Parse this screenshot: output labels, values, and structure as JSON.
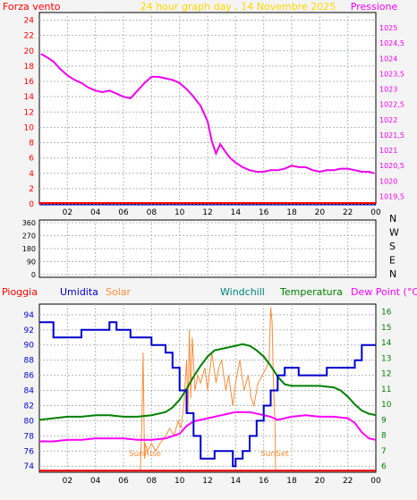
{
  "header": {
    "title": "24 hour graph day , 14 Novembre 2025",
    "left_label": "Forza vento",
    "right_label": "Pressione"
  },
  "colors": {
    "background": "#f4f4f4",
    "plot_bg": "#ffffff",
    "grid": "#b0b8b0",
    "title": "#ffd700",
    "wind_label": "#ff0000",
    "pressure": "#ee00ee",
    "rain": "#ff0000",
    "humidity": "#0000cc",
    "solar": "#ff8c3a",
    "windchill": "#008080",
    "temperature": "#008000",
    "dewpoint": "#ff00ff"
  },
  "chart_data": [
    {
      "type": "line",
      "title": "24 hour graph day , 14 Novembre 2025",
      "x_tick_labels": [
        "02",
        "04",
        "06",
        "08",
        "10",
        "12",
        "14",
        "16",
        "18",
        "20",
        "22",
        "00"
      ],
      "y_left": {
        "label": "Forza vento",
        "ticks": [
          "0",
          "2",
          "4",
          "6",
          "8",
          "10",
          "12",
          "14",
          "16",
          "18",
          "20",
          "22",
          "24"
        ],
        "range": [
          0,
          25
        ]
      },
      "y_right": {
        "label": "Pressione",
        "ticks": [
          "1019,5",
          "1020",
          "1020,5",
          "1021",
          "1021,5",
          "1022",
          "1022,5",
          "1023",
          "1023,5",
          "1024",
          "1024,5",
          "1025"
        ],
        "range": [
          1019.25,
          1025.5
        ]
      },
      "grid": true,
      "series": [
        {
          "name": "Pressione",
          "axis": "right",
          "color": "#ee00ee",
          "x_hours": [
            0.1,
            0.5,
            1.0,
            1.5,
            2.0,
            2.5,
            3.0,
            3.5,
            4.0,
            4.5,
            5.0,
            5.5,
            6.0,
            6.5,
            7.0,
            7.5,
            8.0,
            8.5,
            9.0,
            9.5,
            10.0,
            10.5,
            11.0,
            11.5,
            12.0,
            12.3,
            12.6,
            12.9,
            13.2,
            13.6,
            14.0,
            14.5,
            15.0,
            15.5,
            16.0,
            16.5,
            17.0,
            17.5,
            18.0,
            18.5,
            19.0,
            19.5,
            20.0,
            20.5,
            21.0,
            21.5,
            22.0,
            22.5,
            23.0,
            23.5,
            23.9
          ],
          "values": [
            1024.15,
            1024.05,
            1023.9,
            1023.65,
            1023.45,
            1023.3,
            1023.2,
            1023.05,
            1022.95,
            1022.9,
            1022.95,
            1022.85,
            1022.75,
            1022.7,
            1022.95,
            1023.2,
            1023.4,
            1023.4,
            1023.35,
            1023.3,
            1023.2,
            1023.0,
            1022.75,
            1022.45,
            1021.95,
            1021.3,
            1020.9,
            1021.2,
            1021.0,
            1020.75,
            1020.6,
            1020.45,
            1020.35,
            1020.3,
            1020.3,
            1020.35,
            1020.35,
            1020.4,
            1020.5,
            1020.45,
            1020.45,
            1020.35,
            1020.3,
            1020.35,
            1020.35,
            1020.4,
            1020.4,
            1020.35,
            1020.3,
            1020.3,
            1020.25
          ]
        },
        {
          "name": "Forza vento",
          "axis": "left",
          "color": "#ff0000",
          "x_hours": [
            0,
            24
          ],
          "values": [
            0,
            0
          ]
        }
      ]
    },
    {
      "type": "scatter",
      "title": "",
      "x_tick_labels": [],
      "y_left": {
        "label": "",
        "ticks": [
          "0",
          "90",
          "180",
          "270",
          "360"
        ],
        "range": [
          0,
          360
        ]
      },
      "y_right": {
        "label": "",
        "ticks": [
          "N",
          "E",
          "S",
          "W",
          "N"
        ]
      },
      "grid": true,
      "series": []
    },
    {
      "type": "line",
      "title": "",
      "x_tick_labels": [
        "02",
        "04",
        "06",
        "08",
        "10",
        "12",
        "14",
        "16",
        "18",
        "20",
        "22",
        "00"
      ],
      "y_left": {
        "label": "Umidita",
        "ticks": [
          "74",
          "76",
          "78",
          "80",
          "82",
          "84",
          "86",
          "88",
          "90",
          "92",
          "94"
        ],
        "range": [
          73.2,
          95.4
        ]
      },
      "y_right": {
        "label": "Dew Point (°C)",
        "ticks": [
          "6",
          "7",
          "8",
          "9",
          "10",
          "11",
          "12",
          "13",
          "14",
          "15",
          "16"
        ],
        "range": [
          5.6,
          16.5
        ]
      },
      "header_labels": [
        "Pioggia",
        "Umidita",
        "Solar",
        "Windchill",
        "Temperatura",
        "Dew Point (°C)"
      ],
      "annotations": [
        "SunRise",
        "SunSet"
      ],
      "grid": true,
      "series": [
        {
          "name": "Umidita",
          "axis": "left",
          "color": "#0000cc",
          "step": true,
          "x_hours": [
            0.0,
            1.0,
            1.0,
            3.0,
            3.0,
            5.0,
            5.0,
            5.5,
            5.5,
            6.5,
            6.5,
            8.0,
            8.0,
            9.0,
            9.0,
            9.5,
            9.5,
            10.0,
            10.0,
            10.5,
            10.5,
            11.0,
            11.0,
            11.5,
            11.5,
            12.5,
            12.5,
            13.8,
            13.8,
            14.0,
            14.0,
            14.5,
            14.5,
            15.0,
            15.0,
            15.5,
            15.5,
            16.0,
            16.0,
            16.5,
            16.5,
            17.0,
            17.0,
            17.5,
            17.5,
            18.5,
            18.5,
            20.5,
            20.5,
            21.5,
            21.5,
            22.5,
            22.5,
            23.0,
            23.0,
            24.0
          ],
          "values": [
            93,
            93,
            91,
            91,
            92,
            92,
            93,
            93,
            92,
            92,
            91,
            91,
            90,
            90,
            89,
            89,
            87,
            87,
            84,
            84,
            81,
            81,
            78,
            78,
            75,
            75,
            76,
            76,
            74,
            74,
            75,
            75,
            76,
            76,
            78,
            78,
            80,
            80,
            82,
            82,
            84,
            84,
            86,
            86,
            87,
            87,
            86,
            86,
            87,
            87,
            87,
            87,
            88,
            88,
            90,
            90
          ]
        },
        {
          "name": "Temperatura",
          "axis": "right",
          "color": "#008000",
          "x_hours": [
            0.0,
            1.0,
            2.0,
            3.0,
            4.0,
            5.0,
            6.0,
            7.0,
            8.0,
            9.0,
            9.5,
            10.0,
            10.5,
            11.0,
            11.5,
            12.0,
            12.5,
            13.0,
            13.5,
            14.0,
            14.5,
            15.0,
            15.5,
            16.0,
            16.5,
            17.0,
            17.5,
            18.0,
            19.0,
            20.0,
            21.0,
            21.5,
            22.0,
            22.5,
            23.0,
            23.5,
            24.0
          ],
          "values": [
            9.0,
            9.1,
            9.2,
            9.2,
            9.3,
            9.3,
            9.2,
            9.2,
            9.3,
            9.5,
            9.8,
            10.3,
            11.0,
            11.8,
            12.5,
            13.1,
            13.5,
            13.6,
            13.7,
            13.8,
            13.9,
            13.8,
            13.5,
            13.1,
            12.5,
            11.8,
            11.3,
            11.2,
            11.2,
            11.2,
            11.1,
            10.9,
            10.5,
            10.0,
            9.6,
            9.4,
            9.3
          ]
        },
        {
          "name": "Dew Point (°C)",
          "axis": "right",
          "color": "#ff00ff",
          "x_hours": [
            0.0,
            1.0,
            2.0,
            3.0,
            4.0,
            5.0,
            6.0,
            7.0,
            8.0,
            9.0,
            10.0,
            10.5,
            11.0,
            12.0,
            13.0,
            14.0,
            15.0,
            16.0,
            16.5,
            17.0,
            18.0,
            19.0,
            20.0,
            21.0,
            22.0,
            22.5,
            23.0,
            23.5,
            24.0
          ],
          "values": [
            7.6,
            7.6,
            7.7,
            7.7,
            7.8,
            7.8,
            7.8,
            7.7,
            7.7,
            7.8,
            8.1,
            8.6,
            8.9,
            9.1,
            9.3,
            9.5,
            9.5,
            9.3,
            9.2,
            9.0,
            9.2,
            9.3,
            9.2,
            9.2,
            9.1,
            8.8,
            8.2,
            7.8,
            7.7
          ]
        },
        {
          "name": "Solar",
          "axis": "left",
          "color": "#ff8c3a",
          "x_hours": [
            7.2,
            7.3,
            7.4,
            7.45,
            7.5,
            7.55,
            7.7,
            8.0,
            8.3,
            8.6,
            9.0,
            9.3,
            9.6,
            9.9,
            10.1,
            10.3,
            10.5,
            10.6,
            10.7,
            10.8,
            10.9,
            11.1,
            11.3,
            11.5,
            11.8,
            12.0,
            12.3,
            12.6,
            12.8,
            13.0,
            13.3,
            13.5,
            13.8,
            14.0,
            14.3,
            14.6,
            14.9,
            15.1,
            15.3,
            15.6,
            15.9,
            16.2,
            16.4,
            16.5,
            16.6,
            16.7,
            16.8,
            16.85
          ],
          "values": [
            73.5,
            79,
            89,
            82,
            75,
            77,
            76,
            77,
            76,
            77,
            78,
            79,
            78,
            80,
            79,
            82,
            88,
            81,
            92,
            83,
            91,
            84,
            86,
            85,
            87,
            84,
            89,
            85,
            87,
            88,
            84,
            86,
            82,
            85,
            88,
            84,
            86,
            83,
            82,
            85,
            86,
            87,
            88,
            95,
            93,
            85,
            80,
            73.5
          ]
        },
        {
          "name": "Pioggia",
          "axis": "left",
          "color": "#ff0000",
          "x_hours": [
            0,
            24
          ],
          "values": [
            73.3,
            73.3
          ]
        }
      ]
    }
  ]
}
